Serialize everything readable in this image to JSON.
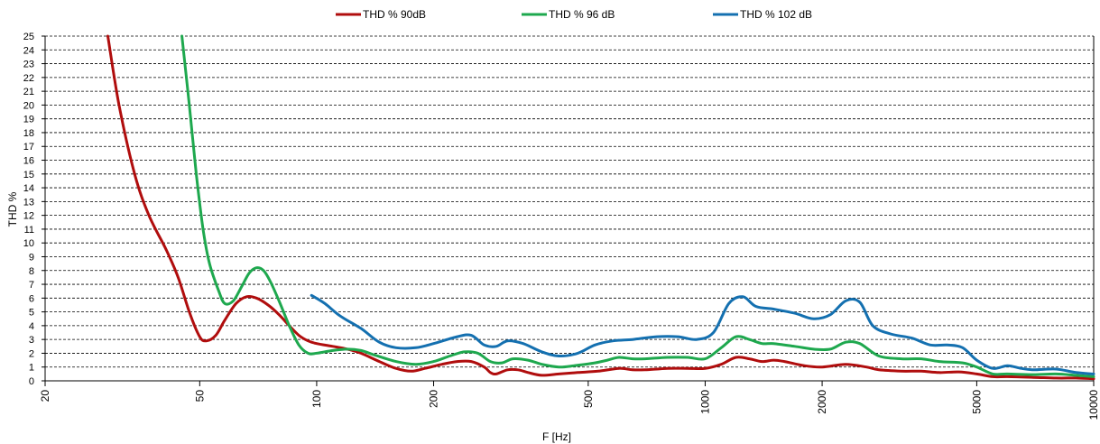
{
  "chart_data": {
    "type": "line",
    "x_scale": "log",
    "xlabel": "F [Hz]",
    "ylabel": "THD %",
    "xlim": [
      20,
      10000
    ],
    "ylim": [
      0,
      25
    ],
    "x_ticks": [
      20,
      50,
      100,
      200,
      500,
      1000,
      2000,
      5000,
      10000
    ],
    "y_ticks": [
      0,
      1,
      2,
      3,
      4,
      5,
      6,
      7,
      8,
      9,
      10,
      11,
      12,
      13,
      14,
      15,
      16,
      17,
      18,
      19,
      20,
      21,
      22,
      23,
      24,
      25
    ],
    "grid": true,
    "legend": "top",
    "series": [
      {
        "name": "THD % 90dB",
        "color": "#b00d0d",
        "points": [
          [
            29,
            25
          ],
          [
            31,
            20
          ],
          [
            34,
            15
          ],
          [
            37,
            12
          ],
          [
            41,
            9.5
          ],
          [
            44,
            7.5
          ],
          [
            47,
            5
          ],
          [
            50,
            3.2
          ],
          [
            52,
            2.9
          ],
          [
            55,
            3.3
          ],
          [
            58,
            4.4
          ],
          [
            62,
            5.6
          ],
          [
            66,
            6.1
          ],
          [
            70,
            6.0
          ],
          [
            75,
            5.5
          ],
          [
            80,
            4.8
          ],
          [
            85,
            4.0
          ],
          [
            90,
            3.3
          ],
          [
            95,
            2.9
          ],
          [
            100,
            2.7
          ],
          [
            110,
            2.5
          ],
          [
            120,
            2.3
          ],
          [
            130,
            2.0
          ],
          [
            145,
            1.4
          ],
          [
            160,
            0.9
          ],
          [
            175,
            0.7
          ],
          [
            190,
            0.9
          ],
          [
            210,
            1.2
          ],
          [
            230,
            1.4
          ],
          [
            250,
            1.4
          ],
          [
            270,
            1.0
          ],
          [
            280,
            0.6
          ],
          [
            290,
            0.5
          ],
          [
            310,
            0.8
          ],
          [
            330,
            0.8
          ],
          [
            350,
            0.6
          ],
          [
            380,
            0.4
          ],
          [
            420,
            0.5
          ],
          [
            470,
            0.6
          ],
          [
            530,
            0.7
          ],
          [
            600,
            0.9
          ],
          [
            650,
            0.8
          ],
          [
            700,
            0.8
          ],
          [
            800,
            0.9
          ],
          [
            900,
            0.9
          ],
          [
            1000,
            0.9
          ],
          [
            1100,
            1.2
          ],
          [
            1200,
            1.7
          ],
          [
            1300,
            1.6
          ],
          [
            1400,
            1.4
          ],
          [
            1500,
            1.5
          ],
          [
            1600,
            1.4
          ],
          [
            1800,
            1.1
          ],
          [
            2000,
            1.0
          ],
          [
            2300,
            1.2
          ],
          [
            2600,
            1.0
          ],
          [
            2800,
            0.8
          ],
          [
            3200,
            0.7
          ],
          [
            3600,
            0.7
          ],
          [
            4000,
            0.6
          ],
          [
            4500,
            0.65
          ],
          [
            5000,
            0.5
          ],
          [
            5500,
            0.3
          ],
          [
            6000,
            0.3
          ],
          [
            7000,
            0.25
          ],
          [
            8000,
            0.2
          ],
          [
            9000,
            0.2
          ],
          [
            10000,
            0.15
          ]
        ]
      },
      {
        "name": "THD % 96 dB",
        "color": "#1ea84e",
        "points": [
          [
            45,
            25
          ],
          [
            47,
            20
          ],
          [
            49,
            15
          ],
          [
            51,
            11
          ],
          [
            53,
            8.5
          ],
          [
            56,
            6.5
          ],
          [
            58,
            5.6
          ],
          [
            61,
            5.8
          ],
          [
            64,
            6.8
          ],
          [
            67,
            7.8
          ],
          [
            70,
            8.2
          ],
          [
            73,
            8.0
          ],
          [
            76,
            7.2
          ],
          [
            80,
            5.8
          ],
          [
            85,
            4.0
          ],
          [
            90,
            2.6
          ],
          [
            95,
            2.0
          ],
          [
            100,
            2.0
          ],
          [
            110,
            2.2
          ],
          [
            120,
            2.3
          ],
          [
            130,
            2.2
          ],
          [
            140,
            1.9
          ],
          [
            160,
            1.4
          ],
          [
            180,
            1.2
          ],
          [
            200,
            1.4
          ],
          [
            220,
            1.8
          ],
          [
            240,
            2.1
          ],
          [
            260,
            2.0
          ],
          [
            280,
            1.4
          ],
          [
            300,
            1.3
          ],
          [
            320,
            1.6
          ],
          [
            350,
            1.5
          ],
          [
            380,
            1.2
          ],
          [
            420,
            1.0
          ],
          [
            460,
            1.1
          ],
          [
            520,
            1.3
          ],
          [
            560,
            1.5
          ],
          [
            600,
            1.7
          ],
          [
            650,
            1.6
          ],
          [
            700,
            1.6
          ],
          [
            800,
            1.7
          ],
          [
            900,
            1.7
          ],
          [
            1000,
            1.6
          ],
          [
            1100,
            2.4
          ],
          [
            1200,
            3.2
          ],
          [
            1300,
            3.0
          ],
          [
            1400,
            2.7
          ],
          [
            1500,
            2.7
          ],
          [
            1700,
            2.5
          ],
          [
            1900,
            2.3
          ],
          [
            2100,
            2.3
          ],
          [
            2300,
            2.8
          ],
          [
            2500,
            2.7
          ],
          [
            2800,
            1.8
          ],
          [
            3200,
            1.6
          ],
          [
            3600,
            1.6
          ],
          [
            4000,
            1.4
          ],
          [
            4600,
            1.3
          ],
          [
            5000,
            1.0
          ],
          [
            5500,
            0.5
          ],
          [
            6000,
            0.5
          ],
          [
            7000,
            0.45
          ],
          [
            8000,
            0.5
          ],
          [
            9000,
            0.4
          ],
          [
            10000,
            0.3
          ]
        ]
      },
      {
        "name": "THD % 102 dB",
        "color": "#1470b0",
        "points": [
          [
            97,
            6.2
          ],
          [
            105,
            5.6
          ],
          [
            115,
            4.7
          ],
          [
            130,
            3.8
          ],
          [
            145,
            2.8
          ],
          [
            160,
            2.4
          ],
          [
            180,
            2.4
          ],
          [
            200,
            2.7
          ],
          [
            230,
            3.2
          ],
          [
            250,
            3.3
          ],
          [
            270,
            2.6
          ],
          [
            290,
            2.5
          ],
          [
            310,
            2.9
          ],
          [
            340,
            2.7
          ],
          [
            380,
            2.1
          ],
          [
            420,
            1.8
          ],
          [
            470,
            2.0
          ],
          [
            520,
            2.6
          ],
          [
            580,
            2.9
          ],
          [
            650,
            3.0
          ],
          [
            750,
            3.2
          ],
          [
            850,
            3.2
          ],
          [
            950,
            3.0
          ],
          [
            1050,
            3.5
          ],
          [
            1150,
            5.6
          ],
          [
            1250,
            6.1
          ],
          [
            1350,
            5.4
          ],
          [
            1500,
            5.2
          ],
          [
            1700,
            4.9
          ],
          [
            1900,
            4.5
          ],
          [
            2100,
            4.8
          ],
          [
            2300,
            5.8
          ],
          [
            2500,
            5.7
          ],
          [
            2700,
            4.0
          ],
          [
            3000,
            3.4
          ],
          [
            3400,
            3.1
          ],
          [
            3800,
            2.6
          ],
          [
            4200,
            2.6
          ],
          [
            4600,
            2.4
          ],
          [
            5000,
            1.5
          ],
          [
            5500,
            0.9
          ],
          [
            6000,
            1.1
          ],
          [
            6500,
            0.9
          ],
          [
            7000,
            0.8
          ],
          [
            8000,
            0.85
          ],
          [
            9000,
            0.6
          ],
          [
            10000,
            0.5
          ]
        ]
      }
    ]
  }
}
